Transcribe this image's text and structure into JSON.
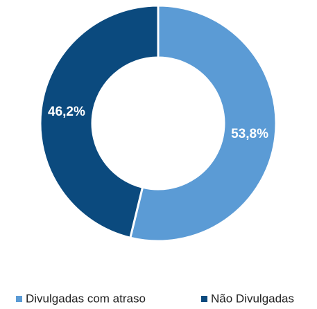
{
  "chart_data": {
    "type": "donut",
    "categories": [
      "Divulgadas com atraso",
      "Não Divulgadas"
    ],
    "values": [
      53.8,
      46.2
    ],
    "value_labels": [
      "53,8%",
      "46,2%"
    ],
    "colors": [
      "#5b9bd5",
      "#0b4a7e"
    ],
    "legend": "bottom"
  }
}
